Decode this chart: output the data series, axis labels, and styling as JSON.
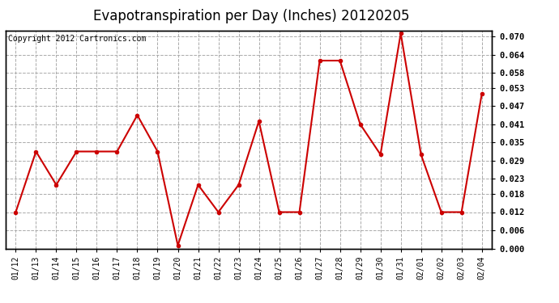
{
  "title": "Evapotranspiration per Day (Inches) 20120205",
  "copyright": "Copyright 2012 Cartronics.com",
  "dates": [
    "01/12",
    "01/13",
    "01/14",
    "01/15",
    "01/16",
    "01/17",
    "01/18",
    "01/19",
    "01/20",
    "01/21",
    "01/22",
    "01/23",
    "01/24",
    "01/25",
    "01/26",
    "01/27",
    "01/28",
    "01/29",
    "01/30",
    "01/31",
    "02/01",
    "02/02",
    "02/03",
    "02/04"
  ],
  "values": [
    0.012,
    0.032,
    0.021,
    0.032,
    0.032,
    0.032,
    0.044,
    0.032,
    0.001,
    0.021,
    0.012,
    0.021,
    0.042,
    0.012,
    0.012,
    0.062,
    0.062,
    0.041,
    0.031,
    0.071,
    0.031,
    0.012,
    0.012,
    0.051
  ],
  "line_color": "#cc0000",
  "marker": "o",
  "marker_size": 3,
  "grid_color": "#aaaaaa",
  "bg_color": "#ffffff",
  "title_fontsize": 12,
  "copyright_fontsize": 7,
  "ymin": 0.0,
  "ymax": 0.072,
  "yticks": [
    0.0,
    0.006,
    0.012,
    0.018,
    0.023,
    0.029,
    0.035,
    0.041,
    0.047,
    0.053,
    0.058,
    0.064,
    0.07
  ],
  "ytick_labels": [
    "0.000",
    "0.006",
    "0.012",
    "0.018",
    "0.023",
    "0.029",
    "0.035",
    "0.041",
    "0.047",
    "0.053",
    "0.058",
    "0.064",
    "0.070"
  ]
}
